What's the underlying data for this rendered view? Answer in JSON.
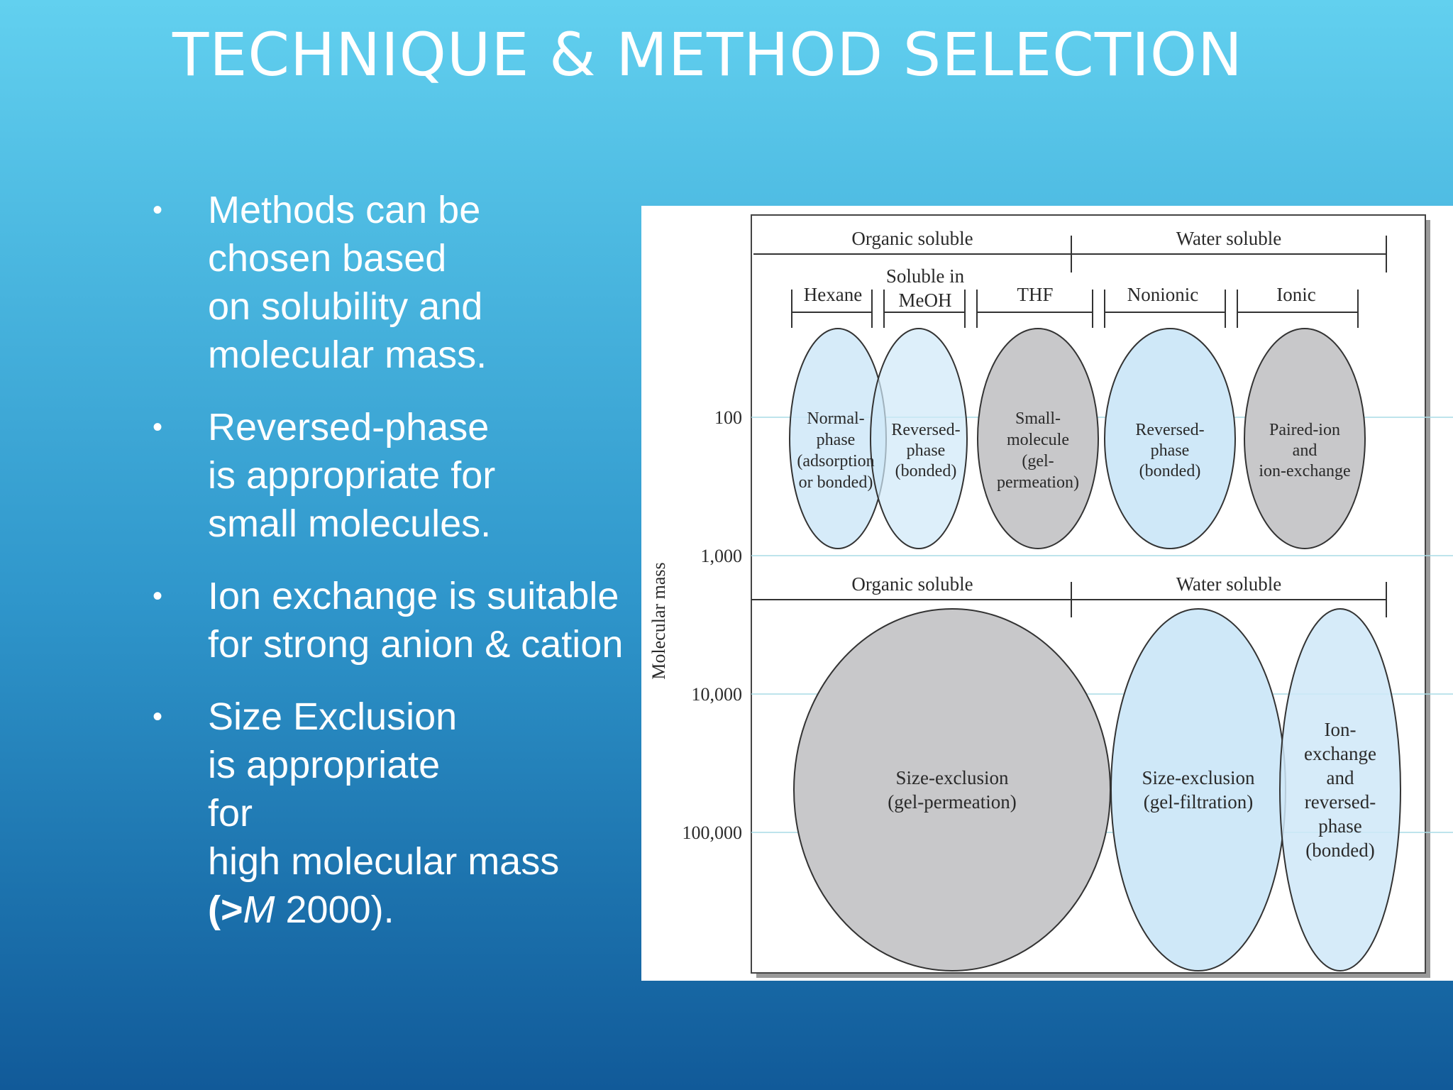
{
  "title": "TECHNIQUE & METHOD SELECTION",
  "bullets": [
    {
      "lines": [
        "Methods can be",
        "chosen based",
        "on  solubility and",
        "molecular mass."
      ]
    },
    {
      "lines": [
        "Reversed-phase",
        "is  appropriate for",
        "small molecules."
      ]
    },
    {
      "lines": [
        "Ion exchange is suitable",
        "for strong anion & cation"
      ]
    },
    {
      "lines": [
        "Size Exclusion",
        "is  appropriate",
        "for",
        "high molecular mass"
      ],
      "last_open": "(>",
      "last_italic": "M",
      "last_close": " 2000)."
    }
  ],
  "diagram": {
    "axis_label": "Molecular mass",
    "ticks": [
      "100",
      "1,000",
      "10,000",
      "100,000"
    ],
    "top_header": {
      "organic": "Organic soluble",
      "water": "Water soluble"
    },
    "solvents": {
      "hexane": "Hexane",
      "meoh_top": "Soluble in",
      "meoh": "MeOH",
      "thf": "THF",
      "nonionic": "Nonionic",
      "ionic": "Ionic"
    },
    "bottom_header": {
      "organic": "Organic soluble",
      "water": "Water soluble"
    },
    "ellipses": {
      "normal_phase": [
        "Normal-",
        "phase",
        "(adsorption",
        "or bonded)"
      ],
      "reversed_phase_organic": [
        "Reversed-",
        "phase",
        "(bonded)"
      ],
      "small_molecule": [
        "Small-",
        "molecule",
        "(gel-",
        "permeation)"
      ],
      "reversed_phase_water": [
        "Reversed-",
        "phase",
        "(bonded)"
      ],
      "paired_ion": [
        "Paired-ion",
        "and",
        "ion-exchange"
      ],
      "size_exclusion_gpc": [
        "Size-exclusion",
        "(gel-permeation)"
      ],
      "size_exclusion_gf": [
        "Size-exclusion",
        "(gel-filtration)"
      ],
      "ion_exchange_rp": [
        "Ion-",
        "exchange",
        "and",
        "reversed-",
        "phase",
        "(bonded)"
      ]
    },
    "colors": {
      "light_blue": "#cfe8f8",
      "gray": "#c8c8ca",
      "gridline": "#a9dce6",
      "ink": "#333333"
    }
  }
}
